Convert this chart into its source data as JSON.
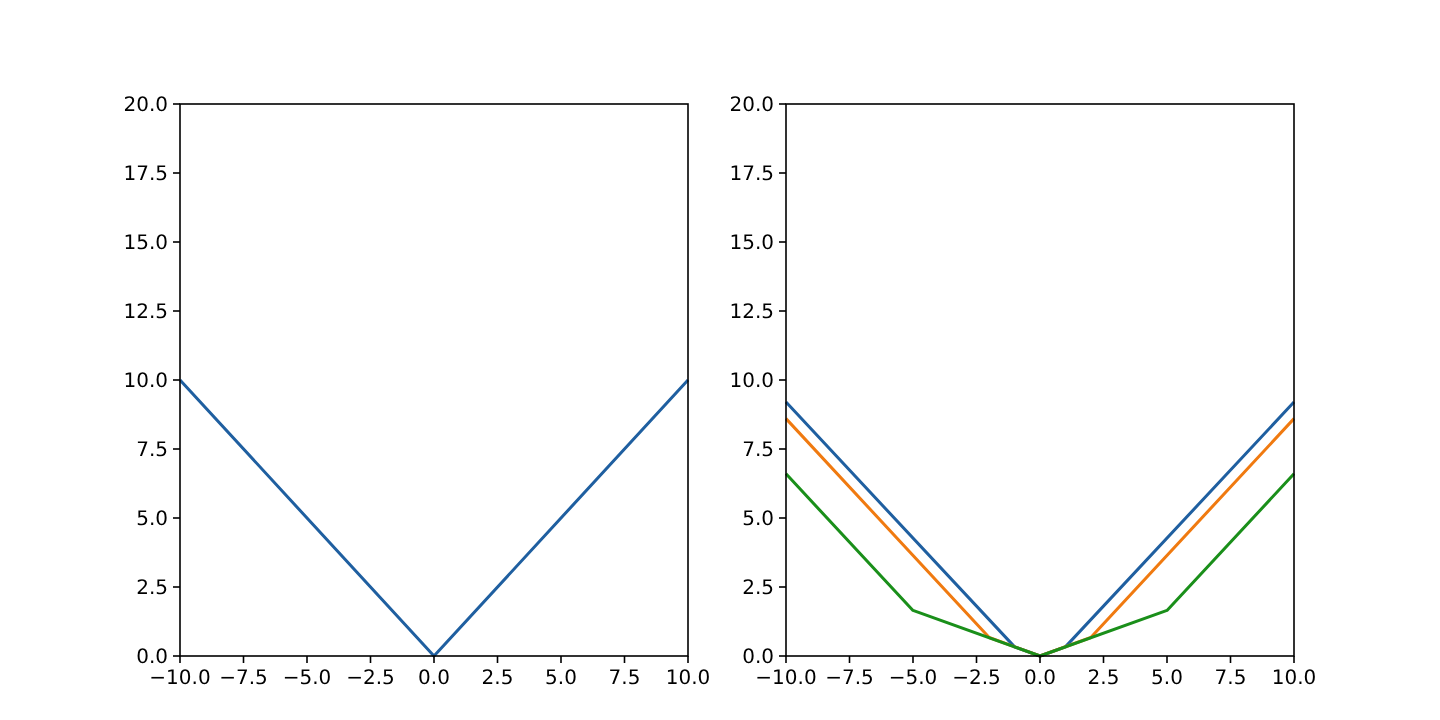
{
  "chart_data": [
    {
      "type": "line",
      "x": [
        -10,
        0,
        10
      ],
      "series": [
        {
          "color": "#1f5fa0",
          "values": [
            10,
            0,
            10
          ]
        }
      ],
      "xlim": [
        -10,
        10
      ],
      "ylim": [
        0,
        20
      ],
      "xticks": [
        {
          "value": -10,
          "label": "−10.0"
        },
        {
          "value": -7.5,
          "label": "−7.5"
        },
        {
          "value": -5,
          "label": "−5.0"
        },
        {
          "value": -2.5,
          "label": "−2.5"
        },
        {
          "value": 0,
          "label": "0.0"
        },
        {
          "value": 2.5,
          "label": "2.5"
        },
        {
          "value": 5,
          "label": "5.0"
        },
        {
          "value": 7.5,
          "label": "7.5"
        },
        {
          "value": 10,
          "label": "10.0"
        }
      ],
      "yticks": [
        {
          "value": 0,
          "label": "0.0"
        },
        {
          "value": 2.5,
          "label": "2.5"
        },
        {
          "value": 5,
          "label": "5.0"
        },
        {
          "value": 7.5,
          "label": "7.5"
        },
        {
          "value": 10,
          "label": "10.0"
        },
        {
          "value": 12.5,
          "label": "12.5"
        },
        {
          "value": 15,
          "label": "15.0"
        },
        {
          "value": 17.5,
          "label": "17.5"
        },
        {
          "value": 20,
          "label": "20.0"
        }
      ]
    },
    {
      "type": "line",
      "series": [
        {
          "color": "#1f5fa0",
          "x": [
            -10,
            -1,
            0,
            1,
            10
          ],
          "values": [
            9.2,
            0.33,
            0,
            0.33,
            9.2
          ]
        },
        {
          "color": "#f07a10",
          "x": [
            -10,
            -2,
            0,
            2,
            10
          ],
          "values": [
            8.6,
            0.67,
            0,
            0.67,
            8.6
          ]
        },
        {
          "color": "#1a8f1a",
          "x": [
            -10,
            -5,
            0,
            5,
            10
          ],
          "values": [
            6.6,
            1.65,
            0,
            1.65,
            6.6
          ]
        }
      ],
      "xlim": [
        -10,
        10
      ],
      "ylim": [
        0,
        20
      ],
      "xticks": [
        {
          "value": -10,
          "label": "−10.0"
        },
        {
          "value": -7.5,
          "label": "−7.5"
        },
        {
          "value": -5,
          "label": "−5.0"
        },
        {
          "value": -2.5,
          "label": "−2.5"
        },
        {
          "value": 0,
          "label": "0.0"
        },
        {
          "value": 2.5,
          "label": "2.5"
        },
        {
          "value": 5,
          "label": "5.0"
        },
        {
          "value": 7.5,
          "label": "7.5"
        },
        {
          "value": 10,
          "label": "10.0"
        }
      ],
      "yticks": [
        {
          "value": 0,
          "label": "0.0"
        },
        {
          "value": 2.5,
          "label": "2.5"
        },
        {
          "value": 5,
          "label": "5.0"
        },
        {
          "value": 7.5,
          "label": "7.5"
        },
        {
          "value": 10,
          "label": "10.0"
        },
        {
          "value": 12.5,
          "label": "12.5"
        },
        {
          "value": 15,
          "label": "15.0"
        },
        {
          "value": 17.5,
          "label": "17.5"
        },
        {
          "value": 20,
          "label": "20.0"
        }
      ]
    }
  ]
}
